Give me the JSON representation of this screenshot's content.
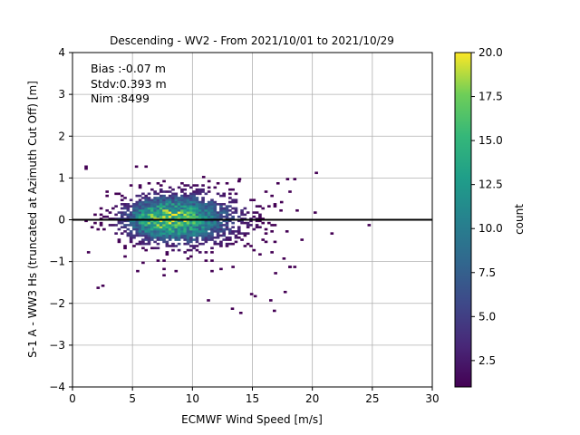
{
  "chart_data": {
    "type": "heatmap",
    "title": "Descending - WV2 - From 2021/10/01 to 2021/10/29",
    "xlabel": "ECMWF Wind Speed [m/s]",
    "ylabel": "S-1 A - WW3 Hs (truncated at Azimuth Cut Off) [m]",
    "xlim": [
      0,
      30
    ],
    "ylim": [
      -4,
      4
    ],
    "xticks": [
      "0",
      "5",
      "10",
      "15",
      "20",
      "25",
      "30"
    ],
    "yticks": [
      "−4",
      "−3",
      "−2",
      "−1",
      "0",
      "1",
      "2",
      "3",
      "4"
    ],
    "grid": true,
    "reference_line_y": 0,
    "annotations": [
      "Bias :-0.07 m",
      "Stdv:0.393 m",
      "Nim :8499"
    ],
    "colorbar": {
      "label": "count",
      "range": [
        1,
        20
      ],
      "ticks": [
        "2.5",
        "5.0",
        "7.5",
        "10.0",
        "12.5",
        "15.0",
        "17.5",
        "20.0"
      ],
      "colormap": "viridis"
    },
    "density_model": {
      "peak_wind_speed": 7.5,
      "peak_diff": 0.0,
      "peak_count": 20,
      "wind_range": [
        0.5,
        25
      ],
      "diff_range": [
        -2.3,
        1.3
      ]
    },
    "outliers": [
      [
        1,
        1.25
      ],
      [
        1,
        1.2
      ],
      [
        5.2,
        1.25
      ],
      [
        6,
        1.25
      ],
      [
        10.8,
        1.0
      ],
      [
        13.8,
        0.95
      ],
      [
        17.8,
        0.95
      ],
      [
        18.4,
        0.95
      ],
      [
        20.2,
        1.1
      ],
      [
        21.5,
        -0.35
      ],
      [
        24.6,
        -0.15
      ],
      [
        1.2,
        -0.8
      ],
      [
        2,
        -1.65
      ],
      [
        2.4,
        -1.6
      ],
      [
        5.3,
        -1.25
      ],
      [
        11.2,
        -1.95
      ],
      [
        13.2,
        -2.15
      ],
      [
        13.9,
        -2.25
      ],
      [
        14.8,
        -1.8
      ],
      [
        15.1,
        -1.85
      ],
      [
        16.4,
        -1.95
      ],
      [
        16.7,
        -2.2
      ],
      [
        17.6,
        -1.75
      ],
      [
        18,
        -1.15
      ],
      [
        18.4,
        -1.15
      ],
      [
        20.1,
        0.15
      ],
      [
        19,
        -0.5
      ],
      [
        16.5,
        0.55
      ],
      [
        17.3,
        0.4
      ],
      [
        18.6,
        0.2
      ],
      [
        16.8,
        -1.3
      ]
    ],
    "colors": {
      "reference_line": "#000000",
      "grid": "#b0b0b0"
    }
  }
}
